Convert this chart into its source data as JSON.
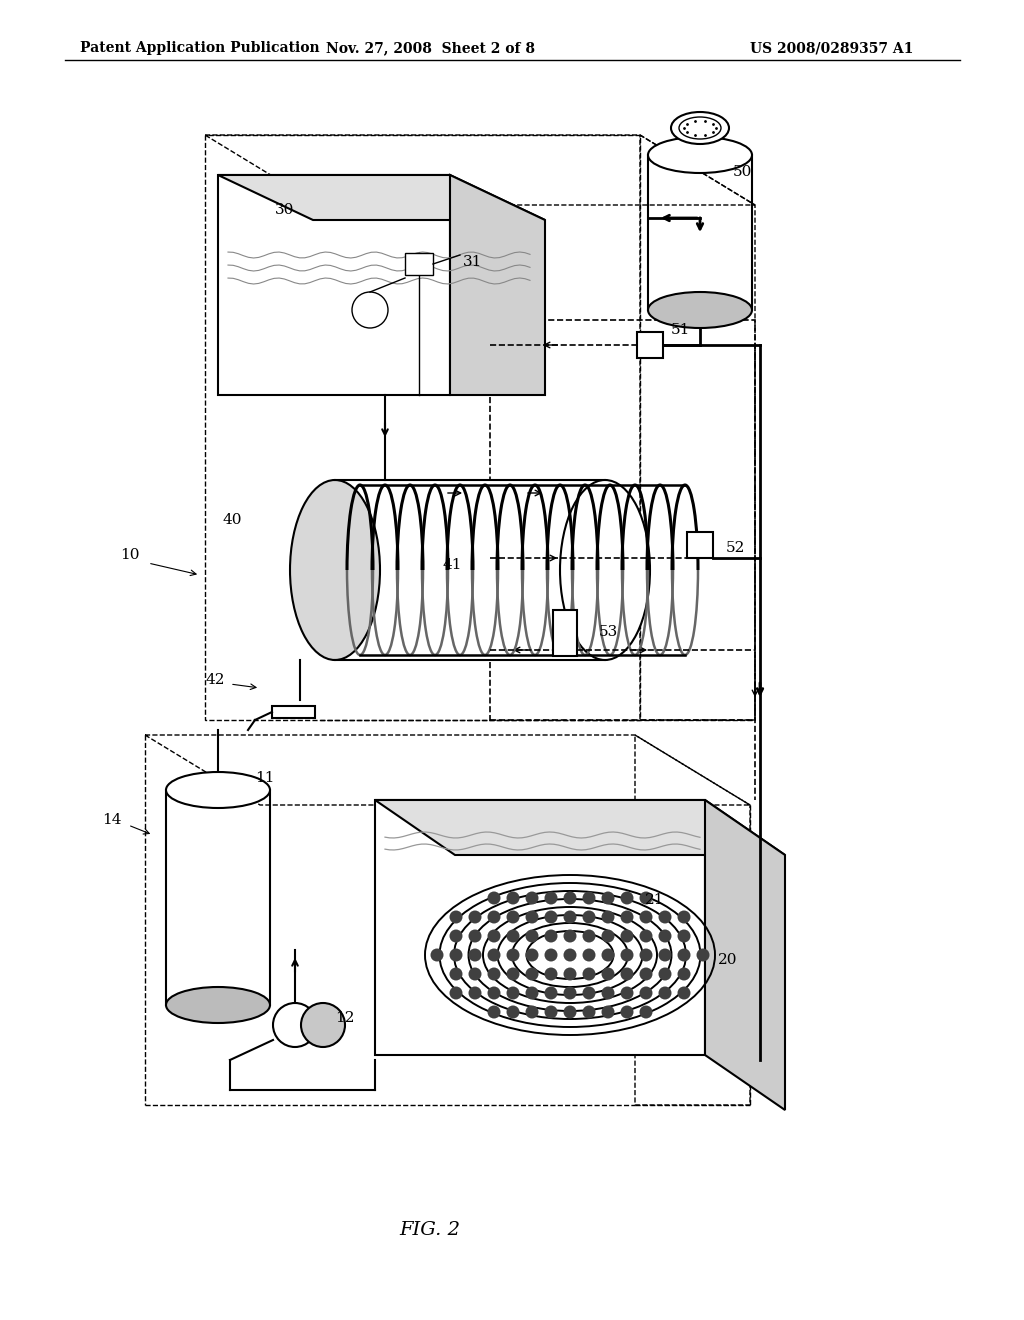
{
  "title": "FIG. 2",
  "header_left": "Patent Application Publication",
  "header_mid": "Nov. 27, 2008  Sheet 2 of 8",
  "header_right": "US 2008/0289357 A1",
  "bg_color": "#ffffff",
  "line_color": "#000000",
  "lw_main": 1.5,
  "lw_thick": 2.0,
  "lw_thin": 1.0,
  "lw_dashed": 1.2
}
